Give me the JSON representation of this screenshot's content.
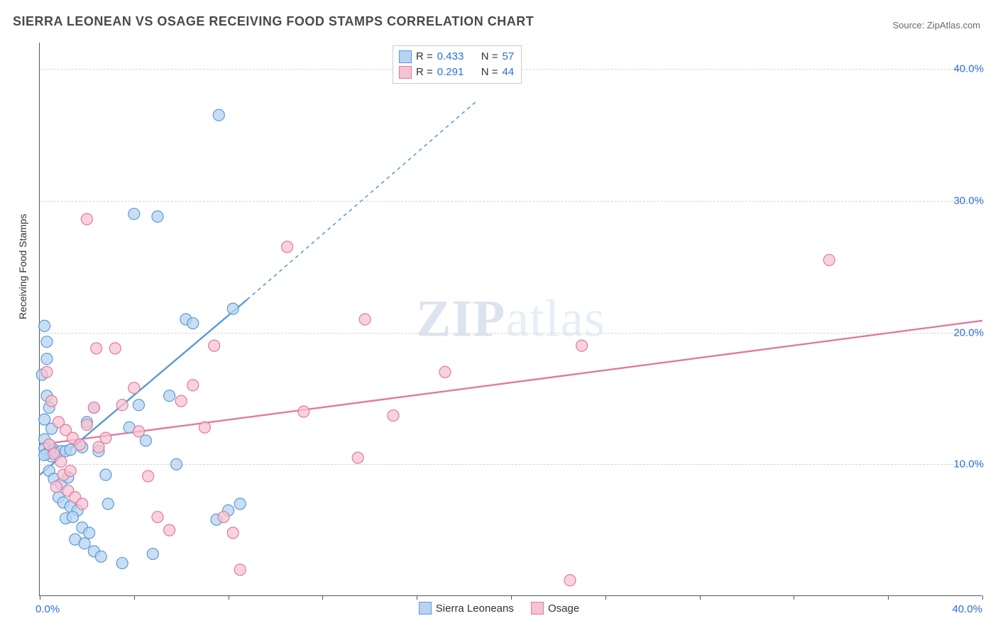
{
  "title": "SIERRA LEONEAN VS OSAGE RECEIVING FOOD STAMPS CORRELATION CHART",
  "source_label": "Source: ZipAtlas.com",
  "ylabel": "Receiving Food Stamps",
  "watermark_bold": "ZIP",
  "watermark_rest": "atlas",
  "chart": {
    "type": "scatter",
    "xlim": [
      0,
      40
    ],
    "ylim": [
      0,
      42
    ],
    "ytick_values": [
      10,
      20,
      30,
      40
    ],
    "ytick_labels": [
      "10.0%",
      "20.0%",
      "30.0%",
      "40.0%"
    ],
    "xtick_positions": [
      0,
      4,
      8,
      12,
      16,
      20,
      24,
      28,
      32,
      36,
      40
    ],
    "xtick_left_label": "0.0%",
    "xtick_right_label": "40.0%",
    "background_color": "#ffffff",
    "grid_color": "#d5d5d5",
    "point_radius": 8,
    "point_stroke_width": 1.2,
    "trend_line_width": 2.4,
    "trend_line_dash": "5,5"
  },
  "series": {
    "sierra": {
      "label": "Sierra Leoneans",
      "fill_color": "#b7d3f2",
      "stroke_color": "#5a9bd5",
      "stats": {
        "R": "0.433",
        "N": "57"
      },
      "trend": {
        "x1": 0,
        "y1": 9.2,
        "x2": 8.8,
        "y2": 22.5,
        "extend_x2": 18.5,
        "extend_y2": 37.5
      },
      "points": [
        [
          0.2,
          20.5
        ],
        [
          0.3,
          19.3
        ],
        [
          0.3,
          18.0
        ],
        [
          0.1,
          16.8
        ],
        [
          0.3,
          15.2
        ],
        [
          0.4,
          14.3
        ],
        [
          0.2,
          13.4
        ],
        [
          0.5,
          12.7
        ],
        [
          0.2,
          11.9
        ],
        [
          0.4,
          11.5
        ],
        [
          0.2,
          11.2
        ],
        [
          0.6,
          11.1
        ],
        [
          0.3,
          10.8
        ],
        [
          0.5,
          10.6
        ],
        [
          0.2,
          10.7
        ],
        [
          0.7,
          10.9
        ],
        [
          0.9,
          11.0
        ],
        [
          1.1,
          11.0
        ],
        [
          1.3,
          11.1
        ],
        [
          0.4,
          9.5
        ],
        [
          0.6,
          8.9
        ],
        [
          0.9,
          8.5
        ],
        [
          1.2,
          9.0
        ],
        [
          0.8,
          7.5
        ],
        [
          1.0,
          7.1
        ],
        [
          1.3,
          6.8
        ],
        [
          1.6,
          6.5
        ],
        [
          1.1,
          5.9
        ],
        [
          1.4,
          6.0
        ],
        [
          1.8,
          5.2
        ],
        [
          2.1,
          4.8
        ],
        [
          1.5,
          4.3
        ],
        [
          1.9,
          4.0
        ],
        [
          2.3,
          3.4
        ],
        [
          2.6,
          3.0
        ],
        [
          3.5,
          2.5
        ],
        [
          2.9,
          7.0
        ],
        [
          1.8,
          11.3
        ],
        [
          2.0,
          13.2
        ],
        [
          2.3,
          14.3
        ],
        [
          2.5,
          11.0
        ],
        [
          2.8,
          9.2
        ],
        [
          3.8,
          12.8
        ],
        [
          4.2,
          14.5
        ],
        [
          4.5,
          11.8
        ],
        [
          5.5,
          15.2
        ],
        [
          5.8,
          10.0
        ],
        [
          6.2,
          21.0
        ],
        [
          6.5,
          20.7
        ],
        [
          4.0,
          29.0
        ],
        [
          5.0,
          28.8
        ],
        [
          7.6,
          36.5
        ],
        [
          7.5,
          5.8
        ],
        [
          8.0,
          6.5
        ],
        [
          8.5,
          7.0
        ],
        [
          8.2,
          21.8
        ],
        [
          4.8,
          3.2
        ]
      ]
    },
    "osage": {
      "label": "Osage",
      "fill_color": "#f5c3d1",
      "stroke_color": "#e17aa0",
      "stats": {
        "R": "0.291",
        "N": "44"
      },
      "trend": {
        "x1": 0,
        "y1": 11.5,
        "x2": 40,
        "y2": 20.9,
        "extend_x2": 40,
        "extend_y2": 20.9
      },
      "points": [
        [
          0.3,
          17.0
        ],
        [
          0.5,
          14.8
        ],
        [
          0.8,
          13.2
        ],
        [
          0.4,
          11.5
        ],
        [
          0.6,
          10.8
        ],
        [
          0.9,
          10.2
        ],
        [
          1.0,
          9.2
        ],
        [
          1.3,
          9.5
        ],
        [
          0.7,
          8.3
        ],
        [
          1.2,
          8.0
        ],
        [
          1.5,
          7.5
        ],
        [
          1.8,
          7.0
        ],
        [
          1.1,
          12.6
        ],
        [
          1.4,
          12.0
        ],
        [
          1.7,
          11.5
        ],
        [
          2.0,
          13.0
        ],
        [
          2.3,
          14.3
        ],
        [
          2.5,
          11.3
        ],
        [
          2.8,
          12.0
        ],
        [
          2.4,
          18.8
        ],
        [
          3.2,
          18.8
        ],
        [
          3.5,
          14.5
        ],
        [
          4.0,
          15.8
        ],
        [
          4.2,
          12.5
        ],
        [
          4.6,
          9.1
        ],
        [
          5.0,
          6.0
        ],
        [
          5.5,
          5.0
        ],
        [
          6.0,
          14.8
        ],
        [
          6.5,
          16.0
        ],
        [
          7.0,
          12.8
        ],
        [
          7.4,
          19.0
        ],
        [
          7.8,
          6.0
        ],
        [
          8.2,
          4.8
        ],
        [
          8.5,
          2.0
        ],
        [
          10.5,
          26.5
        ],
        [
          11.2,
          14.0
        ],
        [
          13.5,
          10.5
        ],
        [
          13.8,
          21.0
        ],
        [
          15.0,
          13.7
        ],
        [
          17.2,
          17.0
        ],
        [
          23.0,
          19.0
        ],
        [
          22.5,
          1.2
        ],
        [
          33.5,
          25.5
        ],
        [
          2.0,
          28.6
        ]
      ]
    }
  },
  "legend_top": {
    "R_label": "R =",
    "N_label": "N ="
  }
}
